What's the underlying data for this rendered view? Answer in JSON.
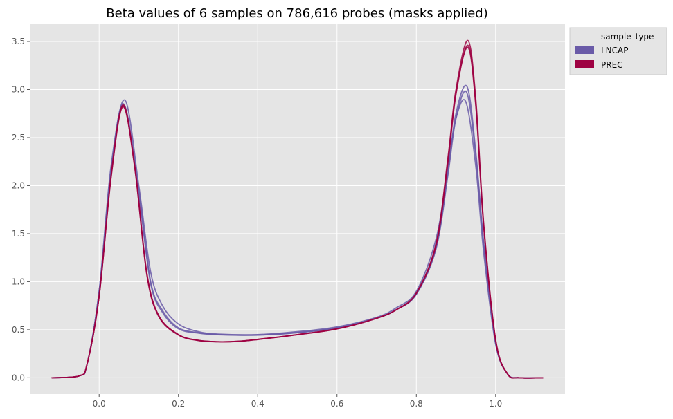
{
  "chart_data": {
    "type": "line",
    "title": "Beta values of 6 samples on 786,616 probes (masks applied)",
    "xlabel": "",
    "ylabel": "",
    "xlim": [
      -0.175,
      1.175
    ],
    "ylim": [
      -0.17,
      3.68
    ],
    "x_ticks": [
      0.0,
      0.2,
      0.4,
      0.6,
      0.8,
      1.0
    ],
    "x_tick_labels": [
      "0.0",
      "0.2",
      "0.4",
      "0.6",
      "0.8",
      "1.0"
    ],
    "y_ticks": [
      0.0,
      0.5,
      1.0,
      1.5,
      2.0,
      2.5,
      3.0,
      3.5
    ],
    "y_tick_labels": [
      "0.0",
      "0.5",
      "1.0",
      "1.5",
      "2.0",
      "2.5",
      "3.0",
      "3.5"
    ],
    "grid": true,
    "legend": {
      "title": "sample_type",
      "placement": "outside-top-right",
      "entries": [
        {
          "label": "LNCAP",
          "color": "#6a5ba8"
        },
        {
          "label": "PREC",
          "color": "#9e0142"
        }
      ]
    },
    "series": [
      {
        "group": "LNCAP",
        "color": "#6a5ba8",
        "x": [
          -0.12,
          -0.05,
          -0.03,
          0.0,
          0.03,
          0.065,
          0.1,
          0.13,
          0.16,
          0.2,
          0.25,
          0.3,
          0.4,
          0.5,
          0.6,
          0.7,
          0.75,
          0.8,
          0.85,
          0.88,
          0.9,
          0.925,
          0.95,
          0.97,
          1.0,
          1.03,
          1.06,
          1.12
        ],
        "y": [
          0.0,
          0.02,
          0.15,
          0.9,
          2.2,
          2.89,
          2.0,
          1.1,
          0.75,
          0.56,
          0.48,
          0.455,
          0.45,
          0.48,
          0.53,
          0.63,
          0.73,
          0.9,
          1.45,
          2.2,
          2.7,
          2.87,
          2.2,
          1.3,
          0.35,
          0.04,
          0.0,
          0.0
        ]
      },
      {
        "group": "LNCAP",
        "color": "#6a5ba8",
        "x": [
          -0.12,
          -0.05,
          -0.03,
          0.0,
          0.03,
          0.062,
          0.1,
          0.13,
          0.16,
          0.2,
          0.25,
          0.3,
          0.4,
          0.5,
          0.6,
          0.7,
          0.75,
          0.8,
          0.85,
          0.88,
          0.9,
          0.928,
          0.95,
          0.97,
          1.0,
          1.03,
          1.06,
          1.12
        ],
        "y": [
          0.0,
          0.02,
          0.15,
          0.9,
          2.15,
          2.85,
          1.95,
          1.0,
          0.7,
          0.52,
          0.47,
          0.45,
          0.445,
          0.47,
          0.52,
          0.62,
          0.71,
          0.87,
          1.35,
          2.15,
          2.75,
          3.03,
          2.35,
          1.4,
          0.37,
          0.04,
          0.0,
          0.0
        ]
      },
      {
        "group": "LNCAP",
        "color": "#6a5ba8",
        "x": [
          -0.12,
          -0.05,
          -0.03,
          0.0,
          0.03,
          0.062,
          0.1,
          0.13,
          0.16,
          0.2,
          0.25,
          0.3,
          0.4,
          0.5,
          0.6,
          0.7,
          0.75,
          0.8,
          0.85,
          0.88,
          0.9,
          0.927,
          0.95,
          0.97,
          1.0,
          1.03,
          1.06,
          1.12
        ],
        "y": [
          0.0,
          0.02,
          0.15,
          0.9,
          2.15,
          2.83,
          1.9,
          0.98,
          0.68,
          0.51,
          0.465,
          0.448,
          0.445,
          0.47,
          0.52,
          0.62,
          0.71,
          0.87,
          1.35,
          2.12,
          2.7,
          2.97,
          2.3,
          1.38,
          0.36,
          0.04,
          0.0,
          0.0
        ]
      },
      {
        "group": "PREC",
        "color": "#9e0142",
        "x": [
          -0.12,
          -0.05,
          -0.03,
          0.0,
          0.03,
          0.06,
          0.09,
          0.12,
          0.15,
          0.2,
          0.25,
          0.3,
          0.35,
          0.4,
          0.5,
          0.6,
          0.7,
          0.75,
          0.8,
          0.85,
          0.88,
          0.9,
          0.93,
          0.95,
          0.97,
          1.0,
          1.03,
          1.06,
          1.12
        ],
        "y": [
          0.0,
          0.02,
          0.15,
          0.85,
          2.1,
          2.84,
          2.2,
          1.1,
          0.65,
          0.45,
          0.39,
          0.375,
          0.38,
          0.4,
          0.45,
          0.51,
          0.62,
          0.71,
          0.88,
          1.4,
          2.3,
          3.0,
          3.51,
          2.9,
          1.6,
          0.4,
          0.04,
          0.0,
          0.0
        ]
      },
      {
        "group": "PREC",
        "color": "#9e0142",
        "x": [
          -0.12,
          -0.05,
          -0.03,
          0.0,
          0.03,
          0.06,
          0.09,
          0.12,
          0.15,
          0.2,
          0.25,
          0.3,
          0.35,
          0.4,
          0.5,
          0.6,
          0.7,
          0.75,
          0.8,
          0.85,
          0.88,
          0.9,
          0.93,
          0.95,
          0.97,
          1.0,
          1.03,
          1.06,
          1.12
        ],
        "y": [
          0.0,
          0.02,
          0.15,
          0.85,
          2.08,
          2.82,
          2.18,
          1.08,
          0.64,
          0.445,
          0.388,
          0.374,
          0.378,
          0.398,
          0.448,
          0.508,
          0.62,
          0.71,
          0.88,
          1.38,
          2.25,
          2.95,
          3.46,
          2.85,
          1.58,
          0.39,
          0.04,
          0.0,
          0.0
        ]
      },
      {
        "group": "PREC",
        "color": "#9e0142",
        "x": [
          -0.12,
          -0.05,
          -0.03,
          0.0,
          0.03,
          0.06,
          0.09,
          0.12,
          0.15,
          0.2,
          0.25,
          0.3,
          0.35,
          0.4,
          0.5,
          0.6,
          0.7,
          0.75,
          0.8,
          0.85,
          0.88,
          0.9,
          0.93,
          0.95,
          0.97,
          1.0,
          1.03,
          1.06,
          1.12
        ],
        "y": [
          0.0,
          0.02,
          0.15,
          0.85,
          2.09,
          2.83,
          2.19,
          1.09,
          0.645,
          0.448,
          0.389,
          0.375,
          0.379,
          0.399,
          0.449,
          0.509,
          0.62,
          0.71,
          0.88,
          1.39,
          2.27,
          2.97,
          3.44,
          2.83,
          1.57,
          0.39,
          0.04,
          0.0,
          0.0
        ]
      }
    ]
  }
}
